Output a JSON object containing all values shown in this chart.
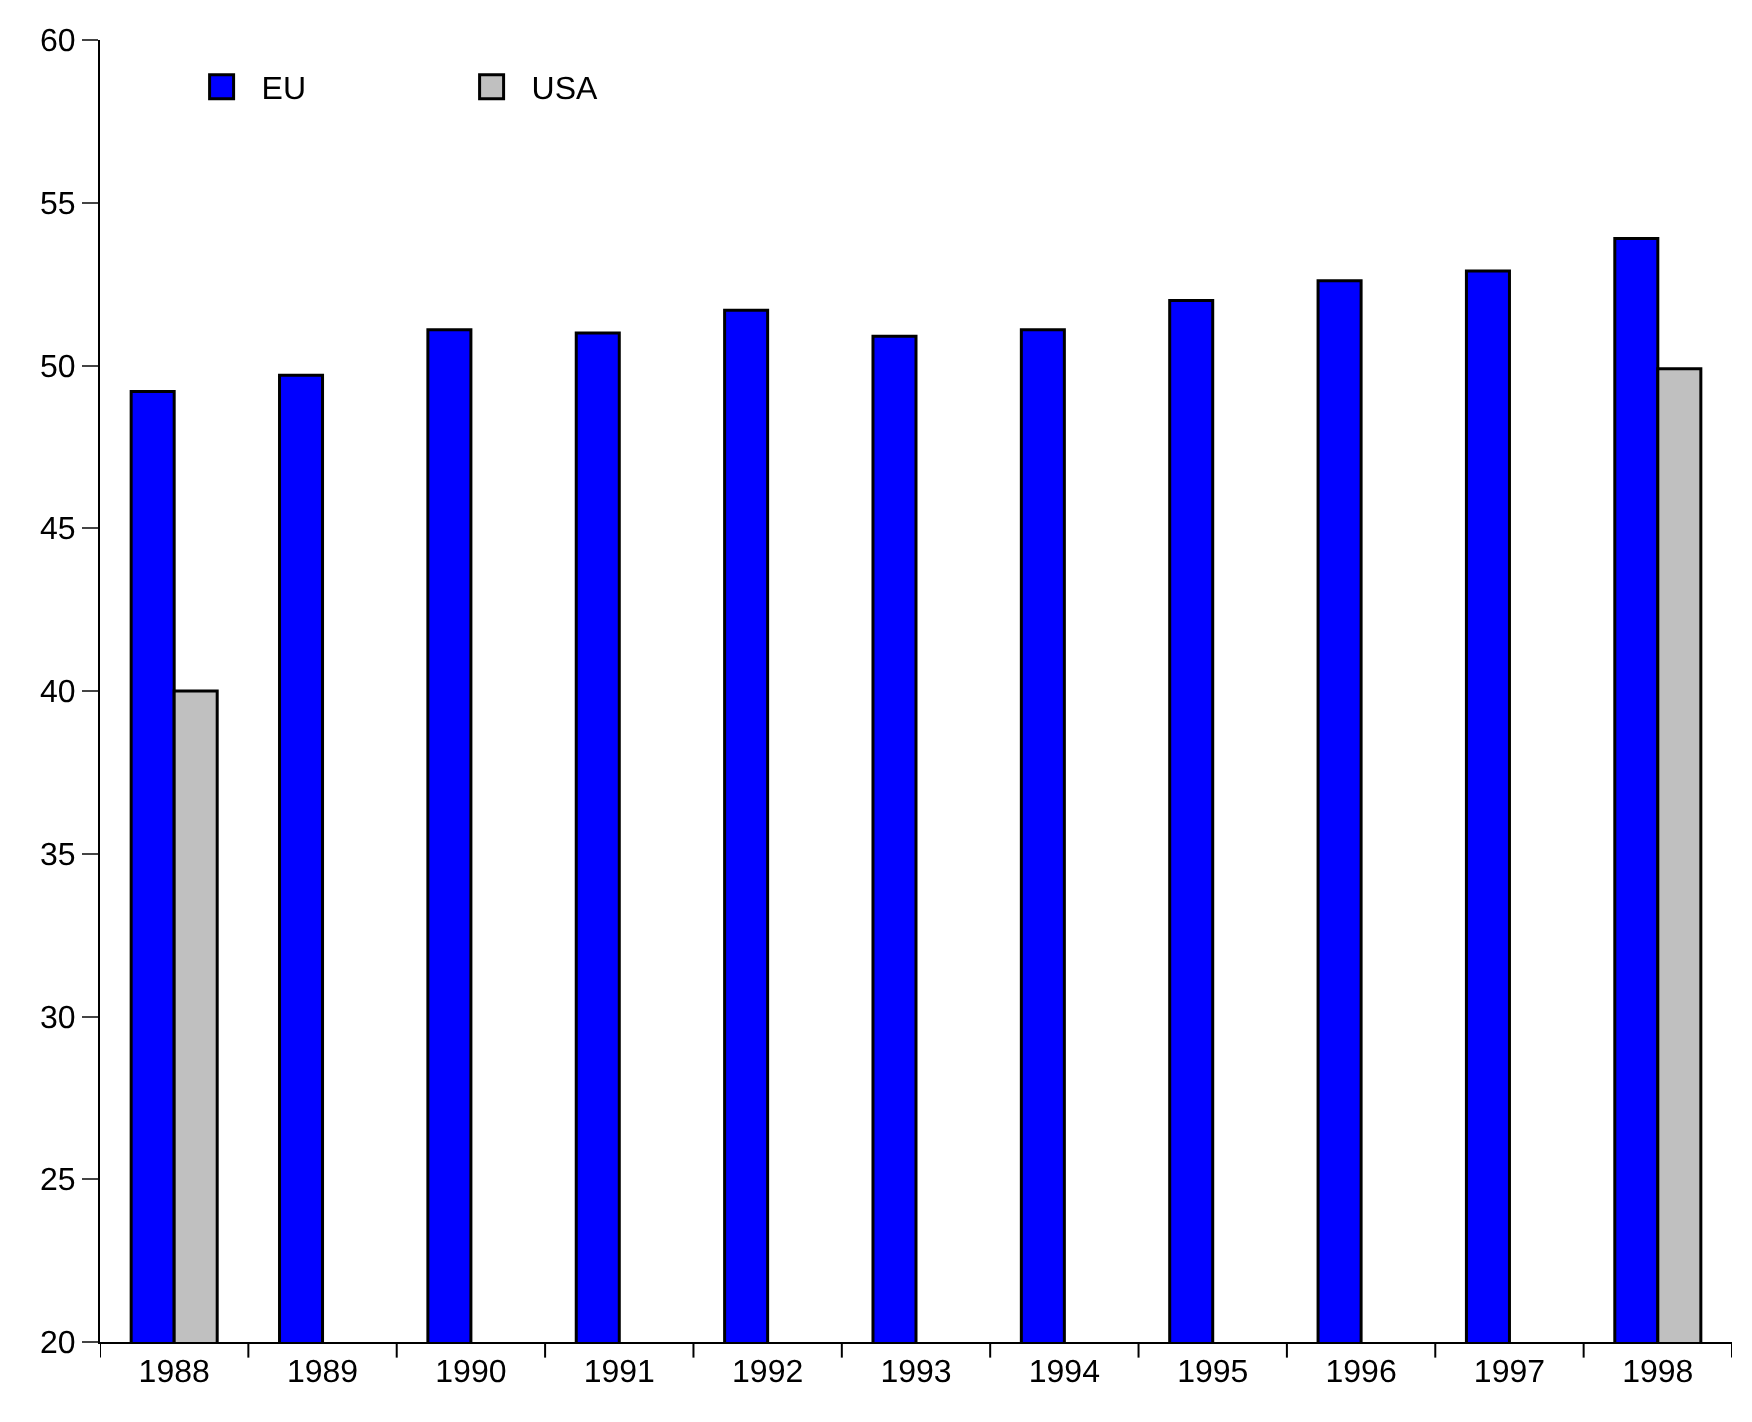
{
  "chart_data": {
    "type": "bar",
    "categories": [
      "1988",
      "1989",
      "1990",
      "1991",
      "1992",
      "1993",
      "1994",
      "1995",
      "1996",
      "1997",
      "1998"
    ],
    "series": [
      {
        "name": "EU",
        "color": "#0000ff",
        "values": [
          49.2,
          49.7,
          51.1,
          51.0,
          51.7,
          50.9,
          51.1,
          52.0,
          52.6,
          52.9,
          53.9
        ]
      },
      {
        "name": "USA",
        "color": "#c0c0c0",
        "values": [
          40.0,
          null,
          null,
          null,
          null,
          null,
          null,
          null,
          null,
          null,
          49.9
        ]
      }
    ],
    "ylim": [
      20,
      60
    ],
    "yticks": [
      20,
      25,
      30,
      35,
      40,
      45,
      50,
      55,
      60
    ],
    "legend": "top left"
  }
}
